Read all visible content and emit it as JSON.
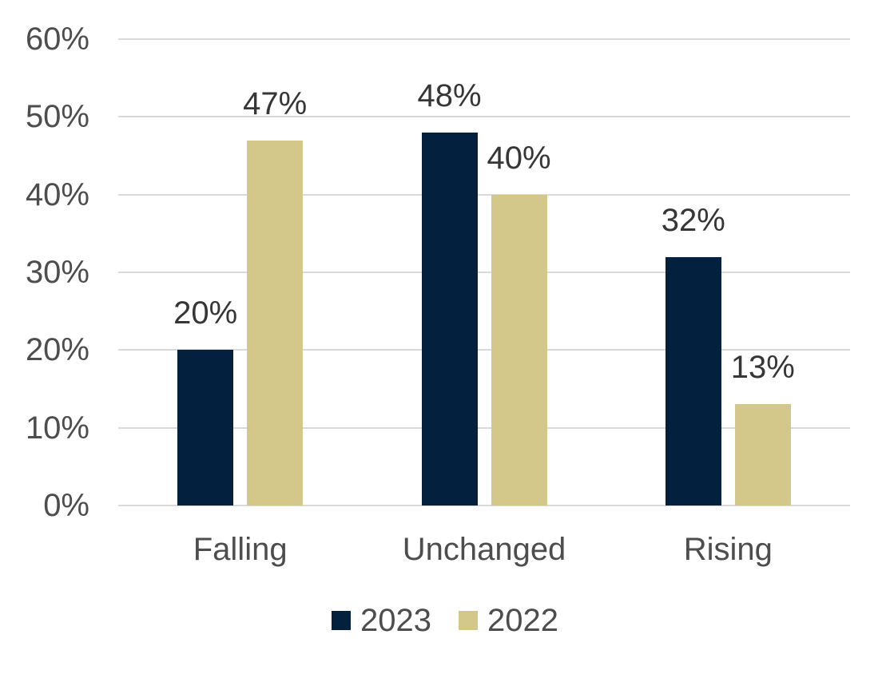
{
  "chart_data": {
    "type": "bar",
    "categories": [
      "Falling",
      "Unchanged",
      "Rising"
    ],
    "series": [
      {
        "name": "2023",
        "color": "#03203E",
        "values": [
          20,
          48,
          32
        ],
        "value_labels": [
          "20%",
          "48%",
          "32%"
        ]
      },
      {
        "name": "2022",
        "color": "#D4C78A",
        "values": [
          47,
          40,
          13
        ],
        "value_labels": [
          "47%",
          "40%",
          "13%"
        ]
      }
    ],
    "title": "",
    "xlabel": "",
    "ylabel": "",
    "ylim": [
      0,
      60
    ],
    "yticks": [
      0,
      10,
      20,
      30,
      40,
      50,
      60
    ],
    "ytick_labels": [
      "0%",
      "10%",
      "20%",
      "30%",
      "40%",
      "50%",
      "60%"
    ],
    "grid": true,
    "data_labels": true,
    "legend_position": "bottom"
  },
  "colors": {
    "gridline": "#d9d9d9",
    "axis_text": "#4d4d4d",
    "data_label_text": "#363636",
    "background": "#ffffff"
  }
}
